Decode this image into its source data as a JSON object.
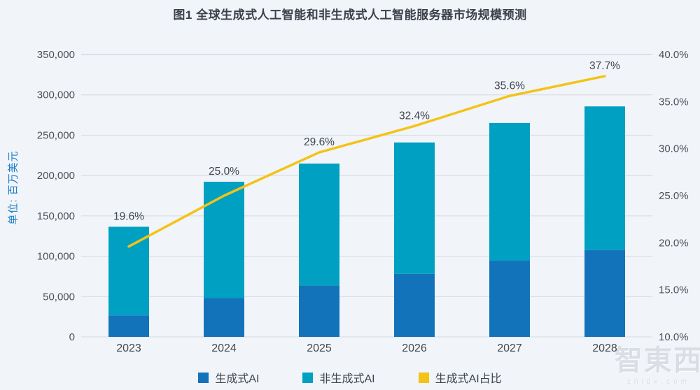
{
  "page": {
    "background": "#f1f5f9"
  },
  "watermark": {
    "brand": "智東西",
    "domain": "zhidx.com"
  },
  "chart_data": {
    "type": "bar",
    "subtype": "stacked-bar-with-line-overlay",
    "title": "图1 全球生成式人工智能和非生成式人工智能服务器市场规模预测",
    "categories": [
      "2023",
      "2024",
      "2025",
      "2026",
      "2027",
      "2028"
    ],
    "series": [
      {
        "name": "生成式AI",
        "type": "bar",
        "axis": "left",
        "color": "#1373ba",
        "values": [
          26700,
          48100,
          63600,
          78100,
          94400,
          107700
        ]
      },
      {
        "name": "非生成式AI",
        "type": "bar",
        "axis": "left",
        "color": "#00a0c2",
        "values": [
          109800,
          144200,
          151200,
          162900,
          170800,
          178000
        ]
      },
      {
        "name": "生成式AI占比",
        "type": "line",
        "axis": "right",
        "color": "#f3c317",
        "values": [
          19.6,
          25.0,
          29.6,
          32.4,
          35.6,
          37.7
        ],
        "point_labels": [
          "19.6%",
          "25.0%",
          "29.6%",
          "32.4%",
          "35.6%",
          "37.7%"
        ]
      }
    ],
    "totals": [
      136500,
      192300,
      214800,
      241000,
      265200,
      285700
    ],
    "left_axis": {
      "label": "单位: 百万美元",
      "min": 0,
      "max": 350000,
      "tick_step": 50000,
      "tick_labels_top_to_bottom": [
        "350,000",
        "300,000",
        "250,000",
        "200,000",
        "150,000",
        "100,000",
        "50,000",
        "0"
      ]
    },
    "right_axis": {
      "min": 10,
      "max": 40,
      "tick_step": 5,
      "tick_labels_top_to_bottom": [
        "40.0%",
        "35.0%",
        "30.0%",
        "25.0%",
        "20.0%",
        "15.0%",
        "10.0%"
      ]
    },
    "grid": true,
    "legend_position": "bottom",
    "colors": {
      "grid_line": "#d5dade",
      "grid_line_top": "#c6cbd2",
      "tick_text": "#4d5158",
      "category_text": "#44484f",
      "data_label_text": "#3f444c"
    }
  }
}
